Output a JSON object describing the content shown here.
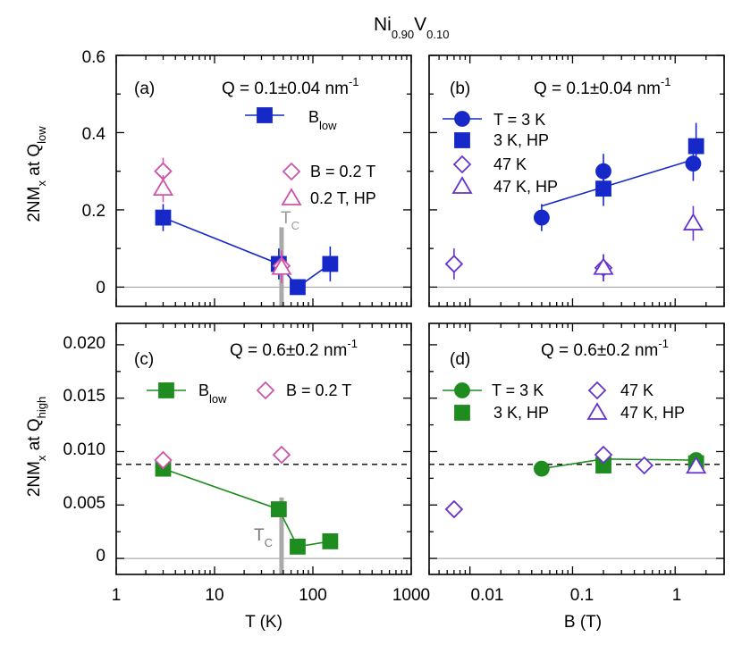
{
  "title": {
    "main": "Ni",
    "sub1": "0.90",
    "mid": "V",
    "sub2": "0.10"
  },
  "colors": {
    "blue": "#1628c8",
    "pink": "#cc55aa",
    "purple": "#6633cc",
    "green": "#1e8c1e",
    "gray": "#aaaaaa"
  },
  "axes": {
    "xlabel_T": "T (K)",
    "xlabel_B": "B (T)",
    "ylabel_top": {
      "main": "2NM",
      "sub1": "x",
      "mid": " at Q",
      "sub2": "low"
    },
    "ylabel_bottom": {
      "main": "2NM",
      "sub1": "x",
      "mid": " at Q",
      "sub2": "high"
    },
    "xticks_T": [
      "1",
      "10",
      "100",
      "1000"
    ],
    "xticks_B": [
      "0.01",
      "0.1",
      "1"
    ],
    "yticks_top": [
      "0",
      "0.2",
      "0.4",
      "0.6"
    ],
    "yticks_bottom": [
      "0",
      "0.005",
      "0.010",
      "0.015",
      "0.020"
    ]
  },
  "annotations": {
    "q_low": {
      "prefix": "Q = 0.1±0.04 nm",
      "sup": "-1"
    },
    "q_high": {
      "prefix": "Q = 0.6±0.2 nm",
      "sup": "-1"
    },
    "tc": {
      "main": "T",
      "sub": "C"
    }
  },
  "chart_data": [
    {
      "panel": "(a)",
      "type": "scatter",
      "xscale": "log",
      "xlim": [
        1,
        1000
      ],
      "ylim": [
        -0.05,
        0.6
      ],
      "xlabel": "T (K)",
      "ylabel": "2NM_x at Q_low",
      "tc_value": 48,
      "series": [
        {
          "name": "B",
          "name_sub": "low",
          "marker": "square",
          "color": "blue",
          "filled": true,
          "line": true,
          "points": [
            {
              "x": 3,
              "y": 0.18,
              "err": 0.035
            },
            {
              "x": 45,
              "y": 0.06,
              "err": 0.04
            },
            {
              "x": 70,
              "y": 0.0,
              "err": 0.02
            },
            {
              "x": 150,
              "y": 0.06,
              "err": 0.045
            }
          ]
        },
        {
          "name": "B = 0.2 T",
          "marker": "diamond",
          "color": "pink",
          "filled": false,
          "line": false,
          "points": [
            {
              "x": 3,
              "y": 0.3,
              "err": 0.035
            },
            {
              "x": 48,
              "y": 0.055,
              "err": 0.04
            }
          ]
        },
        {
          "name": "0.2 T, HP",
          "marker": "triangle",
          "color": "pink",
          "filled": false,
          "line": false,
          "points": [
            {
              "x": 3,
              "y": 0.255,
              "err": 0.035
            },
            {
              "x": 48,
              "y": 0.05,
              "err": 0.04
            }
          ]
        }
      ]
    },
    {
      "panel": "(b)",
      "type": "scatter",
      "xscale": "log",
      "xlim": [
        0.004,
        3
      ],
      "ylim": [
        -0.05,
        0.6
      ],
      "xlabel": "B (T)",
      "ylabel": "",
      "series": [
        {
          "name": "T = 3 K",
          "marker": "circle",
          "color": "blue",
          "filled": true,
          "line": false,
          "points": [
            {
              "x": 0.05,
              "y": 0.18,
              "err": 0.035
            },
            {
              "x": 0.2,
              "y": 0.3,
              "err": 0.045
            },
            {
              "x": 1.5,
              "y": 0.32,
              "err": 0.045
            }
          ]
        },
        {
          "name": "3 K, HP",
          "marker": "square",
          "color": "blue",
          "filled": true,
          "line": false,
          "points": [
            {
              "x": 0.2,
              "y": 0.255,
              "err": 0.045
            },
            {
              "x": 1.6,
              "y": 0.365,
              "err": 0.06
            }
          ]
        },
        {
          "name": "47 K",
          "marker": "diamond",
          "color": "purple",
          "filled": false,
          "line": false,
          "points": [
            {
              "x": 0.007,
              "y": 0.06,
              "err": 0.04
            },
            {
              "x": 0.2,
              "y": 0.05,
              "err": 0.035
            }
          ]
        },
        {
          "name": "47 K, HP",
          "marker": "triangle",
          "color": "purple",
          "filled": false,
          "line": false,
          "points": [
            {
              "x": 0.2,
              "y": 0.05,
              "err": 0.035
            },
            {
              "x": 1.5,
              "y": 0.165,
              "err": 0.045
            }
          ]
        }
      ],
      "fit_line": {
        "color": "blue",
        "points": [
          {
            "x": 0.05,
            "y": 0.21
          },
          {
            "x": 1.5,
            "y": 0.33
          }
        ]
      }
    },
    {
      "panel": "(c)",
      "type": "scatter",
      "xscale": "log",
      "xlim": [
        1,
        1000
      ],
      "ylim": [
        -0.0015,
        0.022
      ],
      "xlabel": "T (K)",
      "ylabel": "2NM_x at Q_high",
      "tc_value": 48,
      "dashed_y": 0.0088,
      "series": [
        {
          "name": "B",
          "name_sub": "low",
          "marker": "square",
          "color": "green",
          "filled": true,
          "line": true,
          "points": [
            {
              "x": 3,
              "y": 0.0084,
              "err": 0.0004
            },
            {
              "x": 45,
              "y": 0.0046,
              "err": 0.0004
            },
            {
              "x": 70,
              "y": 0.0011,
              "err": 0.0004
            },
            {
              "x": 150,
              "y": 0.0016,
              "err": 0.0003
            }
          ]
        },
        {
          "name": "B = 0.2 T",
          "marker": "diamond",
          "color": "pink",
          "filled": false,
          "line": false,
          "points": [
            {
              "x": 3,
              "y": 0.0092,
              "err": 0.0004
            },
            {
              "x": 48,
              "y": 0.0097,
              "err": 0.0005
            }
          ]
        }
      ]
    },
    {
      "panel": "(d)",
      "type": "scatter",
      "xscale": "log",
      "xlim": [
        0.004,
        3
      ],
      "ylim": [
        -0.0015,
        0.022
      ],
      "xlabel": "B (T)",
      "ylabel": "",
      "dashed_y": 0.0088,
      "series": [
        {
          "name": "T = 3 K",
          "marker": "circle",
          "color": "green",
          "filled": true,
          "line": true,
          "points": [
            {
              "x": 0.05,
              "y": 0.0084,
              "err": 0.0003
            },
            {
              "x": 0.2,
              "y": 0.0093,
              "err": 0.0003
            },
            {
              "x": 1.6,
              "y": 0.0092,
              "err": 0.0003
            }
          ]
        },
        {
          "name": "3 K, HP",
          "marker": "square",
          "color": "green",
          "filled": true,
          "line": false,
          "points": [
            {
              "x": 0.2,
              "y": 0.0087,
              "err": 0.0003
            },
            {
              "x": 1.6,
              "y": 0.0089,
              "err": 0.0003
            }
          ]
        },
        {
          "name": "47 K",
          "marker": "diamond",
          "color": "purple",
          "filled": false,
          "line": false,
          "points": [
            {
              "x": 0.007,
              "y": 0.0046,
              "err": 0.0004
            },
            {
              "x": 0.2,
              "y": 0.0097,
              "err": 0.0004
            },
            {
              "x": 0.5,
              "y": 0.0087,
              "err": 0.0004
            }
          ]
        },
        {
          "name": "47 K, HP",
          "marker": "triangle",
          "color": "purple",
          "filled": false,
          "line": false,
          "points": [
            {
              "x": 1.6,
              "y": 0.0086,
              "err": 0.0004
            }
          ]
        }
      ]
    }
  ]
}
